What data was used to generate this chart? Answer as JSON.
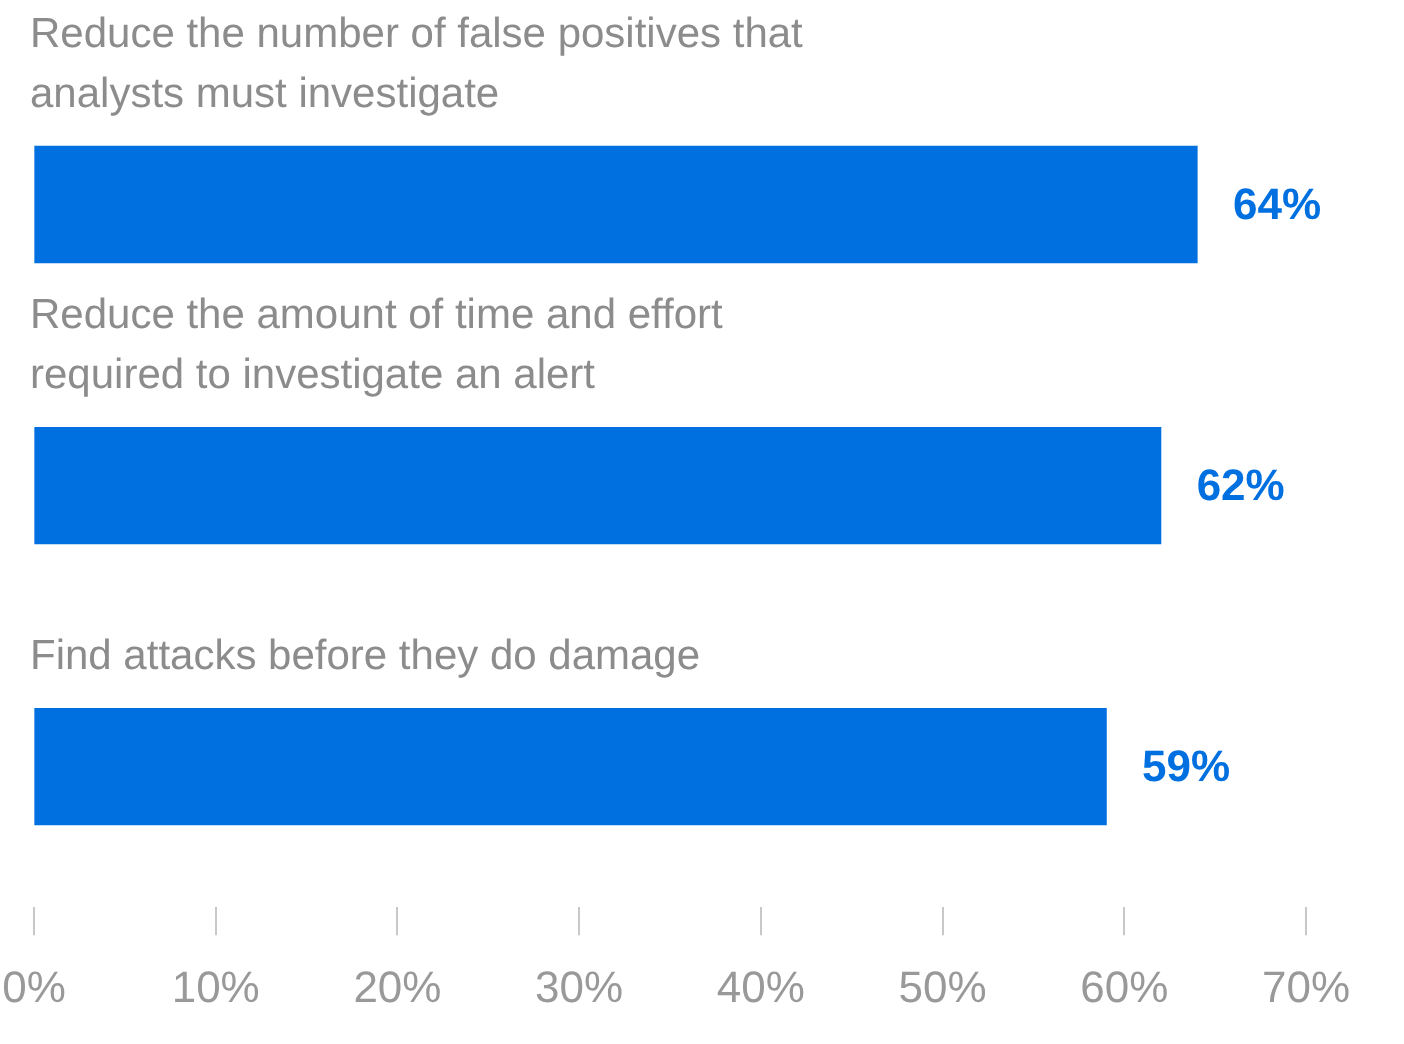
{
  "chart_data": {
    "type": "bar",
    "orientation": "horizontal",
    "categories": [
      "Reduce the number of false positives that analysts must investigate",
      "Reduce the amount of time and effort required to investigate an alert",
      "Find attacks before they do damage"
    ],
    "values": [
      64,
      62,
      59
    ],
    "color": "#0070e0",
    "value_labels": [
      "64%",
      "62%",
      "59%"
    ],
    "xlim": [
      0,
      70
    ],
    "xticks": [
      {
        "value": 0,
        "label": "0%"
      },
      {
        "value": 10,
        "label": "10%"
      },
      {
        "value": 20,
        "label": "20%"
      },
      {
        "value": 30,
        "label": "30%"
      },
      {
        "value": 40,
        "label": "40%"
      },
      {
        "value": 50,
        "label": "50%"
      },
      {
        "value": 60,
        "label": "60%"
      },
      {
        "value": 70,
        "label": "70%"
      }
    ],
    "grid": false,
    "legend": false
  }
}
